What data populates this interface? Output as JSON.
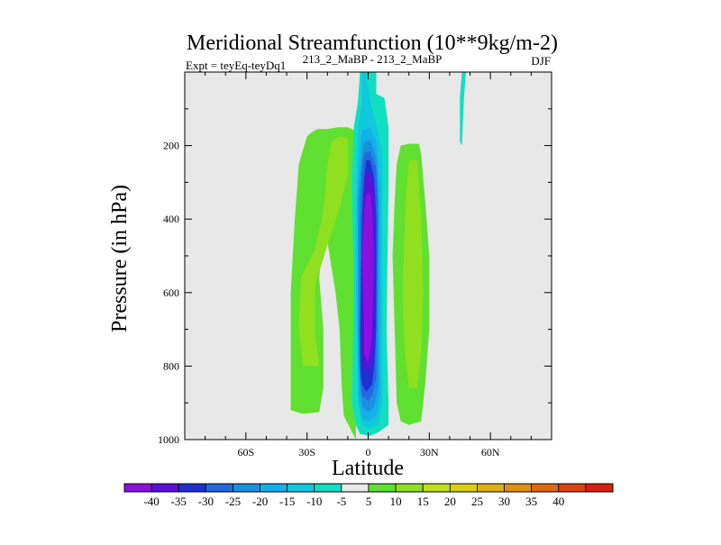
{
  "chart_data": {
    "type": "heatmap",
    "title": "Meridional Streamfunction (10**9kg/m-2)",
    "subtitle_left": "Expt = teyEq-teyDq1",
    "subtitle_center": "213_2_MaBP - 213_2_MaBP",
    "subtitle_right": "DJF",
    "xlabel": "Latitude",
    "ylabel": "Pressure (in hPa)",
    "xlim": [
      -90,
      90
    ],
    "ylim": [
      0,
      1000
    ],
    "y_inverted": true,
    "x_ticks": [
      {
        "value": -60,
        "label": "60S"
      },
      {
        "value": -30,
        "label": "30S"
      },
      {
        "value": 0,
        "label": "0"
      },
      {
        "value": 30,
        "label": "30N"
      },
      {
        "value": 60,
        "label": "60N"
      }
    ],
    "y_ticks": [
      {
        "value": 200,
        "label": "200"
      },
      {
        "value": 400,
        "label": "400"
      },
      {
        "value": 600,
        "label": "600"
      },
      {
        "value": 800,
        "label": "800"
      },
      {
        "value": 1000,
        "label": "1000"
      }
    ],
    "background_color": "#e8e8e8",
    "colorbar": {
      "colors": [
        "#8a10e0",
        "#5a10d8",
        "#2030d0",
        "#2468e0",
        "#1a90e0",
        "#14b0e8",
        "#10c8e0",
        "#10e0c0",
        "#e8e8e8",
        "#60e030",
        "#90e020",
        "#c0e018",
        "#d8d010",
        "#e0b010",
        "#e09010",
        "#e06810",
        "#e04010",
        "#d82010"
      ],
      "labels": [
        "-40",
        "-35",
        "-30",
        "-25",
        "-20",
        "-15",
        "-10",
        "-5",
        "5",
        "10",
        "15",
        "20",
        "25",
        "30",
        "35",
        "40"
      ]
    },
    "contours": [
      {
        "name": "sh-cell-outer",
        "color": "#60e030",
        "points": [
          [
            -30,
            175
          ],
          [
            -28,
            165
          ],
          [
            -25,
            155
          ],
          [
            -20,
            155
          ],
          [
            -15,
            150
          ],
          [
            -10,
            150
          ],
          [
            -6,
            160
          ],
          [
            -6,
            1000
          ],
          [
            -12,
            935
          ],
          [
            -13,
            850
          ],
          [
            -14,
            700
          ],
          [
            -16,
            600
          ],
          [
            -20,
            460
          ],
          [
            -21,
            400
          ],
          [
            -22,
            430
          ],
          [
            -24,
            560
          ],
          [
            -22,
            700
          ],
          [
            -22,
            860
          ],
          [
            -24,
            925
          ],
          [
            -32,
            930
          ],
          [
            -38,
            920
          ],
          [
            -38,
            600
          ],
          [
            -36,
            400
          ],
          [
            -34,
            250
          ]
        ]
      },
      {
        "name": "sh-cell-inner",
        "color": "#90e020",
        "points": [
          [
            -18,
            190
          ],
          [
            -14,
            175
          ],
          [
            -10,
            180
          ],
          [
            -10,
            280
          ],
          [
            -14,
            370
          ],
          [
            -20,
            470
          ],
          [
            -26,
            580
          ],
          [
            -26,
            720
          ],
          [
            -24,
            800
          ],
          [
            -32,
            800
          ],
          [
            -34,
            700
          ],
          [
            -33,
            560
          ],
          [
            -26,
            480
          ],
          [
            -22,
            380
          ],
          [
            -20,
            250
          ]
        ]
      },
      {
        "name": "nh-cell-outer",
        "color": "#60e030",
        "points": [
          [
            16,
            200
          ],
          [
            20,
            195
          ],
          [
            25,
            195
          ],
          [
            26,
            225
          ],
          [
            28,
            350
          ],
          [
            30,
            500
          ],
          [
            30,
            700
          ],
          [
            28,
            850
          ],
          [
            26,
            950
          ],
          [
            20,
            960
          ],
          [
            16,
            950
          ],
          [
            14,
            900
          ],
          [
            13,
            700
          ],
          [
            12,
            500
          ],
          [
            13,
            350
          ],
          [
            14,
            250
          ]
        ]
      },
      {
        "name": "nh-cell-inner",
        "color": "#90e020",
        "points": [
          [
            20,
            240
          ],
          [
            24,
            240
          ],
          [
            26,
            400
          ],
          [
            27,
            600
          ],
          [
            26,
            760
          ],
          [
            24,
            860
          ],
          [
            20,
            860
          ],
          [
            18,
            760
          ],
          [
            17,
            600
          ],
          [
            18,
            400
          ]
        ]
      },
      {
        "name": "eq-band-5",
        "color": "#10e0c0",
        "points": [
          [
            -4,
            0
          ],
          [
            4,
            0
          ],
          [
            4,
            60
          ],
          [
            8,
            70
          ],
          [
            10,
            150
          ],
          [
            10,
            300
          ],
          [
            9,
            700
          ],
          [
            10,
            900
          ],
          [
            10,
            960
          ],
          [
            5,
            980
          ],
          [
            1,
            990
          ],
          [
            -4,
            985
          ],
          [
            -6,
            960
          ],
          [
            -8,
            900
          ],
          [
            -7,
            600
          ],
          [
            -8,
            300
          ],
          [
            -7,
            150
          ],
          [
            -5,
            80
          ]
        ]
      },
      {
        "name": "eq-band-10",
        "color": "#10c8e0",
        "points": [
          [
            -3,
            0
          ],
          [
            -1,
            0
          ],
          [
            1,
            80
          ],
          [
            4,
            140
          ],
          [
            7,
            220
          ],
          [
            7,
            400
          ],
          [
            7,
            700
          ],
          [
            7,
            900
          ],
          [
            5,
            960
          ],
          [
            0,
            970
          ],
          [
            -3,
            960
          ],
          [
            -5,
            900
          ],
          [
            -6,
            600
          ],
          [
            -6,
            300
          ],
          [
            -5,
            150
          ],
          [
            -3,
            80
          ]
        ]
      },
      {
        "name": "eq-band-15",
        "color": "#14b0e8",
        "points": [
          [
            -3,
            160
          ],
          [
            1,
            150
          ],
          [
            4,
            190
          ],
          [
            6,
            300
          ],
          [
            6,
            600
          ],
          [
            6,
            880
          ],
          [
            4,
            935
          ],
          [
            0,
            950
          ],
          [
            -3,
            940
          ],
          [
            -5,
            880
          ],
          [
            -5,
            600
          ],
          [
            -5,
            300
          ],
          [
            -4,
            200
          ]
        ]
      },
      {
        "name": "eq-band-20",
        "color": "#1a90e0",
        "points": [
          [
            -2,
            190
          ],
          [
            1,
            185
          ],
          [
            4,
            230
          ],
          [
            5,
            350
          ],
          [
            5,
            700
          ],
          [
            5,
            860
          ],
          [
            3,
            910
          ],
          [
            0,
            925
          ],
          [
            -3,
            910
          ],
          [
            -4,
            860
          ],
          [
            -5,
            700
          ],
          [
            -5,
            350
          ],
          [
            -3,
            230
          ]
        ]
      },
      {
        "name": "eq-band-25",
        "color": "#2468e0",
        "points": [
          [
            -2,
            220
          ],
          [
            1,
            215
          ],
          [
            4,
            260
          ],
          [
            5,
            400
          ],
          [
            4,
            700
          ],
          [
            4,
            830
          ],
          [
            2,
            880
          ],
          [
            0,
            895
          ],
          [
            -3,
            880
          ],
          [
            -4,
            830
          ],
          [
            -4,
            700
          ],
          [
            -4,
            400
          ],
          [
            -3,
            260
          ]
        ]
      },
      {
        "name": "eq-band-30",
        "color": "#2030d0",
        "points": [
          [
            -1,
            240
          ],
          [
            1,
            240
          ],
          [
            3,
            290
          ],
          [
            4,
            400
          ],
          [
            4,
            700
          ],
          [
            3,
            800
          ],
          [
            2,
            850
          ],
          [
            -1,
            870
          ],
          [
            -3,
            850
          ],
          [
            -4,
            800
          ],
          [
            -4,
            700
          ],
          [
            -3,
            400
          ],
          [
            -2,
            290
          ]
        ]
      },
      {
        "name": "eq-band-35",
        "color": "#5a10d8",
        "points": [
          [
            -1,
            275
          ],
          [
            1,
            275
          ],
          [
            3,
            330
          ],
          [
            3,
            500
          ],
          [
            3,
            700
          ],
          [
            2,
            780
          ],
          [
            0,
            820
          ],
          [
            -2,
            800
          ],
          [
            -3,
            760
          ],
          [
            -3,
            700
          ],
          [
            -3,
            500
          ],
          [
            -2,
            340
          ]
        ]
      },
      {
        "name": "eq-band-40",
        "color": "#8a10e0",
        "points": [
          [
            -1,
            330
          ],
          [
            1,
            330
          ],
          [
            2,
            380
          ],
          [
            3,
            500
          ],
          [
            2,
            700
          ],
          [
            1,
            760
          ],
          [
            0,
            790
          ],
          [
            -2,
            770
          ],
          [
            -2,
            700
          ],
          [
            -3,
            500
          ],
          [
            -2,
            380
          ]
        ]
      },
      {
        "name": "nh-streak",
        "color": "#10e0c0",
        "points": [
          [
            46,
            0
          ],
          [
            48,
            0
          ],
          [
            47,
            70
          ],
          [
            46,
            200
          ],
          [
            45,
            190
          ],
          [
            45,
            70
          ]
        ]
      }
    ]
  }
}
